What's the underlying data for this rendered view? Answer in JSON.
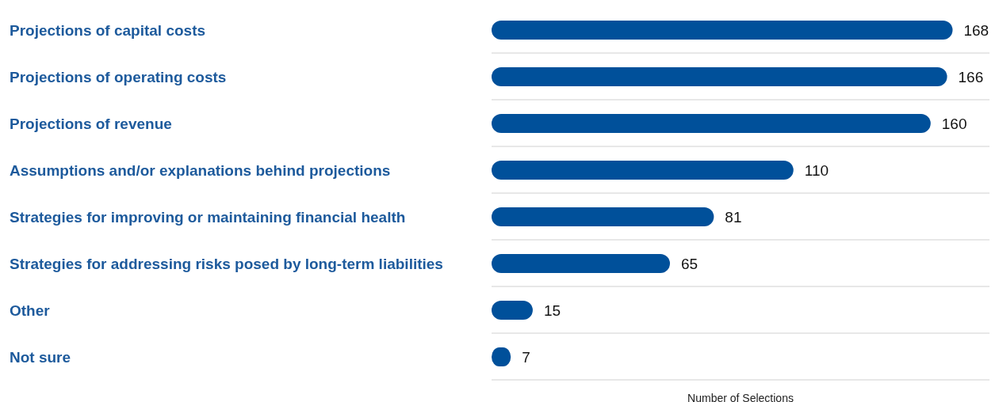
{
  "chart_data": {
    "type": "bar",
    "orientation": "horizontal",
    "xlabel": "Number of Selections",
    "categories": [
      "Projections of capital costs",
      "Projections of operating costs",
      "Projections of revenue",
      "Assumptions and/or explanations behind projections",
      "Strategies for improving or maintaining financial health",
      "Strategies for addressing risks posed by long-term liabilities",
      "Other",
      "Not sure"
    ],
    "values": [
      168,
      166,
      160,
      110,
      81,
      65,
      15,
      7
    ],
    "color": "#00509a",
    "data_labels": true,
    "grid": "y"
  }
}
